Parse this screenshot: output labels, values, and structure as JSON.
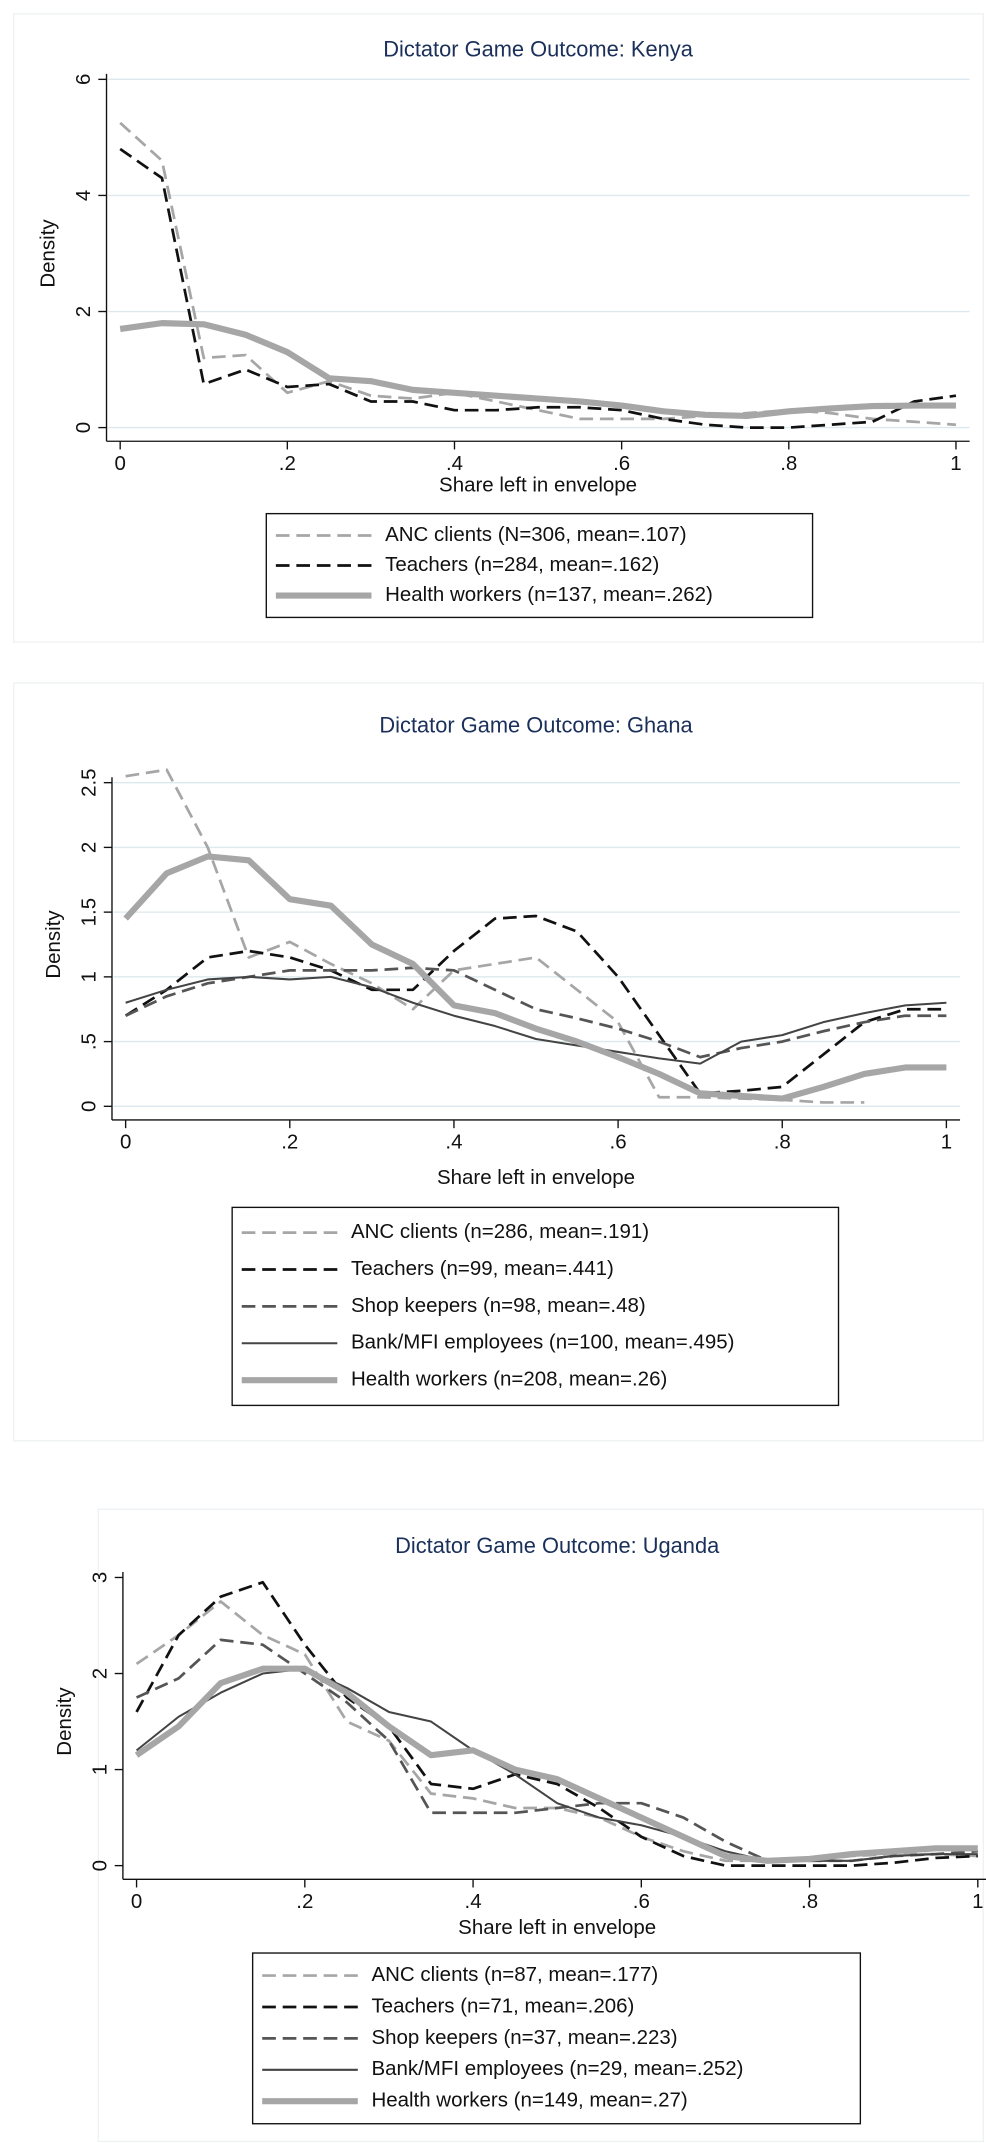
{
  "chart_data": [
    {
      "type": "line",
      "title": "Dictator Game Outcome: Kenya",
      "x_label": "Share left in envelope",
      "y_label": "Density",
      "grid": true,
      "xlim": [
        0,
        1
      ],
      "ylim": [
        0,
        6
      ],
      "xticks": [
        0,
        {
          "value": 0.2,
          "label": ".2"
        },
        {
          "value": 0.4,
          "label": ".4"
        },
        {
          "value": 0.6,
          "label": ".6"
        },
        {
          "value": 0.8,
          "label": ".8"
        },
        1
      ],
      "yticks": [
        0,
        2,
        4,
        6
      ],
      "x": [
        0,
        0.05,
        0.1,
        0.15,
        0.2,
        0.25,
        0.3,
        0.35,
        0.4,
        0.45,
        0.5,
        0.55,
        0.6,
        0.65,
        0.7,
        0.75,
        0.8,
        0.85,
        0.9,
        0.95,
        1
      ],
      "series": [
        {
          "name": "ANC clients (N=306, mean=.107)",
          "color": "#a6a6a6",
          "style": "dashed",
          "values": [
            5.25,
            4.6,
            1.2,
            1.25,
            0.6,
            0.8,
            0.55,
            0.5,
            0.6,
            0.45,
            0.3,
            0.15,
            0.15,
            0.15,
            0.2,
            0.25,
            0.3,
            0.25,
            0.15,
            0.1,
            0.05
          ]
        },
        {
          "name": "Teachers (n=284, mean=.162)",
          "color": "#111111",
          "style": "dashed",
          "values": [
            4.8,
            4.3,
            0.75,
            1.0,
            0.7,
            0.75,
            0.45,
            0.45,
            0.3,
            0.3,
            0.35,
            0.35,
            0.3,
            0.15,
            0.05,
            0.0,
            0.0,
            0.05,
            0.1,
            0.45,
            0.55
          ]
        },
        {
          "name": "Health workers (n=137, mean=.262)",
          "color": "#a6a6a6",
          "style": "thick",
          "values": [
            1.7,
            1.8,
            1.78,
            1.6,
            1.3,
            0.85,
            0.8,
            0.65,
            0.6,
            0.55,
            0.5,
            0.45,
            0.38,
            0.28,
            0.22,
            0.2,
            0.28,
            0.33,
            0.37,
            0.38,
            0.38
          ]
        }
      ]
    },
    {
      "type": "line",
      "title": "Dictator Game Outcome: Ghana",
      "x_label": "Share left in envelope",
      "y_label": "Density",
      "grid": true,
      "xlim": [
        0,
        1
      ],
      "ylim": [
        0,
        2.5
      ],
      "xticks": [
        0,
        {
          "value": 0.2,
          "label": ".2"
        },
        {
          "value": 0.4,
          "label": ".4"
        },
        {
          "value": 0.6,
          "label": ".6"
        },
        {
          "value": 0.8,
          "label": ".8"
        },
        1
      ],
      "yticks": [
        0,
        {
          "value": 0.5,
          "label": ".5"
        },
        1,
        1.5,
        2,
        2.5
      ],
      "x": [
        0,
        0.05,
        0.1,
        0.15,
        0.2,
        0.25,
        0.3,
        0.35,
        0.4,
        0.45,
        0.5,
        0.55,
        0.6,
        0.65,
        0.7,
        0.75,
        0.8,
        0.85,
        0.9,
        0.95,
        1
      ],
      "series": [
        {
          "name": "ANC clients (n=286, mean=.191)",
          "color": "#a6a6a6",
          "style": "dashed",
          "values": [
            2.55,
            2.6,
            2.0,
            1.15,
            1.27,
            1.1,
            0.95,
            0.75,
            1.05,
            1.1,
            1.15,
            0.9,
            0.65,
            0.07,
            0.07,
            0.06,
            0.05,
            0.03,
            0.03,
            null,
            null
          ]
        },
        {
          "name": "Teachers (n=99, mean=.441)",
          "color": "#111111",
          "style": "dashed",
          "values": [
            0.7,
            0.9,
            1.15,
            1.2,
            1.15,
            1.05,
            0.9,
            0.9,
            1.2,
            1.45,
            1.47,
            1.35,
            1.0,
            0.55,
            0.1,
            0.12,
            0.15,
            0.4,
            0.65,
            0.75,
            0.75
          ]
        },
        {
          "name": "Shop keepers (n=98, mean=.48)",
          "color": "#555555",
          "style": "dashed",
          "values": [
            0.7,
            0.85,
            0.95,
            1.0,
            1.05,
            1.05,
            1.05,
            1.07,
            1.05,
            0.9,
            0.75,
            0.68,
            0.6,
            0.5,
            0.38,
            0.45,
            0.5,
            0.58,
            0.65,
            0.7,
            0.7
          ]
        },
        {
          "name": "Bank/MFI employees (n=100, mean=.495)",
          "color": "#444444",
          "style": "solid",
          "values": [
            0.8,
            0.9,
            0.98,
            1.0,
            0.98,
            1.0,
            0.92,
            0.8,
            0.7,
            0.62,
            0.52,
            0.47,
            0.42,
            0.37,
            0.33,
            0.5,
            0.55,
            0.65,
            0.72,
            0.78,
            0.8
          ]
        },
        {
          "name": "Health workers (n=208, mean=.26)",
          "color": "#a6a6a6",
          "style": "thick",
          "values": [
            1.45,
            1.8,
            1.93,
            1.9,
            1.6,
            1.55,
            1.25,
            1.1,
            0.78,
            0.72,
            0.6,
            0.5,
            0.38,
            0.25,
            0.1,
            0.08,
            0.06,
            0.15,
            0.25,
            0.3,
            0.3
          ]
        }
      ]
    },
    {
      "type": "line",
      "title": "Dictator Game Outcome: Uganda",
      "x_label": "Share left in envelope",
      "y_label": "Density",
      "grid": false,
      "xlim": [
        0,
        1
      ],
      "ylim": [
        0,
        3
      ],
      "xticks": [
        0,
        {
          "value": 0.2,
          "label": ".2"
        },
        {
          "value": 0.4,
          "label": ".4"
        },
        {
          "value": 0.6,
          "label": ".6"
        },
        {
          "value": 0.8,
          "label": ".8"
        },
        1
      ],
      "yticks": [
        0,
        1,
        2,
        3
      ],
      "x": [
        0,
        0.05,
        0.1,
        0.15,
        0.2,
        0.25,
        0.3,
        0.35,
        0.4,
        0.45,
        0.5,
        0.55,
        0.6,
        0.65,
        0.7,
        0.75,
        0.8,
        0.85,
        0.9,
        0.95,
        1
      ],
      "series": [
        {
          "name": "ANC clients (n=87, mean=.177)",
          "color": "#a6a6a6",
          "style": "dashed",
          "values": [
            2.1,
            2.4,
            2.75,
            2.4,
            2.2,
            1.5,
            1.3,
            0.75,
            0.7,
            0.6,
            0.6,
            0.5,
            0.3,
            0.15,
            0.05,
            0.05,
            0.05,
            0.1,
            0.12,
            0.12,
            0.1
          ]
        },
        {
          "name": "Teachers (n=71, mean=.206)",
          "color": "#111111",
          "style": "dashed",
          "values": [
            1.6,
            2.4,
            2.8,
            2.95,
            2.3,
            1.75,
            1.45,
            0.85,
            0.8,
            0.95,
            0.85,
            0.6,
            0.3,
            0.1,
            0.0,
            0.0,
            0.0,
            0.0,
            0.03,
            0.08,
            0.1
          ]
        },
        {
          "name": "Shop keepers (n=37, mean=.223)",
          "color": "#555555",
          "style": "dashed",
          "values": [
            1.75,
            1.95,
            2.35,
            2.3,
            2.0,
            1.7,
            1.3,
            0.55,
            0.55,
            0.55,
            0.6,
            0.65,
            0.65,
            0.5,
            0.25,
            0.05,
            0.05,
            0.05,
            0.1,
            0.12,
            0.15
          ]
        },
        {
          "name": "Bank/MFI employees (n=29, mean=.252)",
          "color": "#444444",
          "style": "solid",
          "values": [
            1.2,
            1.55,
            1.8,
            2.0,
            2.05,
            1.85,
            1.6,
            1.5,
            1.2,
            0.95,
            0.65,
            0.5,
            0.42,
            0.3,
            0.15,
            0.05,
            0.05,
            0.05,
            0.1,
            0.12,
            0.12
          ]
        },
        {
          "name": "Health workers (n=149, mean=.27)",
          "color": "#a6a6a6",
          "style": "thick",
          "values": [
            1.15,
            1.45,
            1.9,
            2.05,
            2.05,
            1.8,
            1.45,
            1.15,
            1.2,
            1.0,
            0.9,
            0.7,
            0.5,
            0.3,
            0.1,
            0.05,
            0.07,
            0.12,
            0.15,
            0.18,
            0.18
          ]
        }
      ]
    }
  ]
}
